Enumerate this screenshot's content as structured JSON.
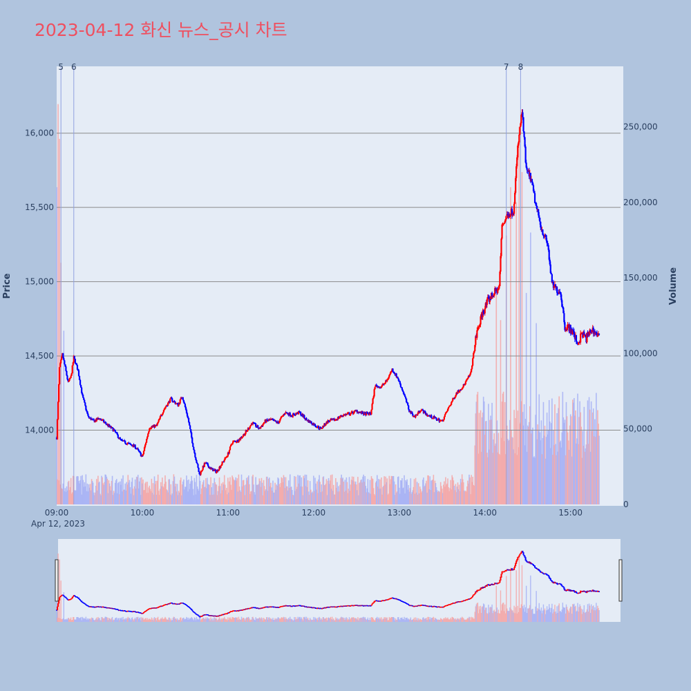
{
  "title": "2023-04-12 화신 뉴스_공시 차트",
  "colors": {
    "background": "#b0c4de",
    "plot_bg": "#e5ecf6",
    "up": "#ff0000",
    "down": "#0000ff",
    "up_volume": "#f4a6a6",
    "down_volume": "#a6b0f4",
    "grid": "#8a8a8a",
    "marker_line": "#8fa0e0",
    "title": "#ef4f5f"
  },
  "chart_data": {
    "type": "candlestick",
    "date_label": "Apr 12, 2023",
    "xlabels": [
      "09:00",
      "10:00",
      "11:00",
      "12:00",
      "13:00",
      "14:00",
      "15:00"
    ],
    "x_range_minutes": [
      540,
      935
    ],
    "price_axis": {
      "title": "Price",
      "range": [
        13500,
        16450
      ],
      "ticks": [
        14000,
        14500,
        15000,
        15500,
        16000
      ],
      "tick_labels": [
        "14,000",
        "14,500",
        "15,000",
        "15,500",
        "16,000"
      ]
    },
    "volume_axis": {
      "title": "Volume",
      "range": [
        0,
        290000
      ],
      "ticks": [
        0,
        50000,
        100000,
        150000,
        200000,
        250000
      ],
      "tick_labels": [
        "0",
        "50,000",
        "100,000",
        "150,000",
        "200,000",
        "250,000"
      ]
    },
    "news_markers": [
      {
        "label": "5",
        "time_minutes": 543
      },
      {
        "label": "6",
        "time_minutes": 552
      },
      {
        "label": "7",
        "time_minutes": 855
      },
      {
        "label": "8",
        "time_minutes": 865
      }
    ],
    "price_path": [
      [
        540,
        13950
      ],
      [
        542,
        14420
      ],
      [
        544,
        14510
      ],
      [
        546,
        14420
      ],
      [
        548,
        14320
      ],
      [
        550,
        14360
      ],
      [
        552,
        14490
      ],
      [
        555,
        14400
      ],
      [
        558,
        14230
      ],
      [
        562,
        14090
      ],
      [
        566,
        14060
      ],
      [
        570,
        14080
      ],
      [
        575,
        14040
      ],
      [
        580,
        14000
      ],
      [
        585,
        13930
      ],
      [
        590,
        13910
      ],
      [
        595,
        13890
      ],
      [
        600,
        13820
      ],
      [
        605,
        14020
      ],
      [
        610,
        14030
      ],
      [
        615,
        14140
      ],
      [
        620,
        14210
      ],
      [
        625,
        14170
      ],
      [
        628,
        14230
      ],
      [
        632,
        14080
      ],
      [
        636,
        13870
      ],
      [
        640,
        13700
      ],
      [
        644,
        13780
      ],
      [
        648,
        13740
      ],
      [
        652,
        13720
      ],
      [
        656,
        13780
      ],
      [
        660,
        13840
      ],
      [
        663,
        13920
      ],
      [
        667,
        13930
      ],
      [
        672,
        13980
      ],
      [
        677,
        14050
      ],
      [
        682,
        14010
      ],
      [
        686,
        14060
      ],
      [
        690,
        14070
      ],
      [
        695,
        14050
      ],
      [
        700,
        14120
      ],
      [
        705,
        14100
      ],
      [
        710,
        14120
      ],
      [
        715,
        14070
      ],
      [
        720,
        14040
      ],
      [
        725,
        14010
      ],
      [
        730,
        14060
      ],
      [
        735,
        14070
      ],
      [
        740,
        14100
      ],
      [
        745,
        14110
      ],
      [
        750,
        14130
      ],
      [
        755,
        14110
      ],
      [
        760,
        14110
      ],
      [
        763,
        14300
      ],
      [
        767,
        14290
      ],
      [
        771,
        14330
      ],
      [
        775,
        14410
      ],
      [
        779,
        14350
      ],
      [
        783,
        14250
      ],
      [
        787,
        14130
      ],
      [
        791,
        14090
      ],
      [
        795,
        14140
      ],
      [
        800,
        14100
      ],
      [
        805,
        14080
      ],
      [
        810,
        14060
      ],
      [
        815,
        14160
      ],
      [
        820,
        14250
      ],
      [
        825,
        14300
      ],
      [
        830,
        14380
      ],
      [
        834,
        14640
      ],
      [
        838,
        14780
      ],
      [
        842,
        14870
      ],
      [
        846,
        14920
      ],
      [
        850,
        14960
      ],
      [
        852,
        15380
      ],
      [
        856,
        15450
      ],
      [
        860,
        15480
      ],
      [
        863,
        15900
      ],
      [
        866,
        16150
      ],
      [
        869,
        15750
      ],
      [
        872,
        15700
      ],
      [
        876,
        15500
      ],
      [
        880,
        15350
      ],
      [
        884,
        15250
      ],
      [
        887,
        14980
      ],
      [
        890,
        14950
      ],
      [
        893,
        14930
      ],
      [
        896,
        14700
      ],
      [
        899,
        14690
      ],
      [
        902,
        14650
      ],
      [
        905,
        14580
      ],
      [
        908,
        14650
      ],
      [
        911,
        14620
      ],
      [
        915,
        14680
      ],
      [
        920,
        14630
      ]
    ],
    "volume_spikes": [
      [
        540,
        210000
      ],
      [
        541,
        265000
      ],
      [
        542,
        242000
      ],
      [
        543,
        160000
      ],
      [
        545,
        115000
      ],
      [
        848,
        140000
      ],
      [
        851,
        122000
      ],
      [
        855,
        178000
      ],
      [
        858,
        210000
      ],
      [
        862,
        200000
      ],
      [
        864,
        250000
      ],
      [
        866,
        220000
      ],
      [
        869,
        140000
      ],
      [
        872,
        180000
      ],
      [
        876,
        120000
      ]
    ]
  }
}
